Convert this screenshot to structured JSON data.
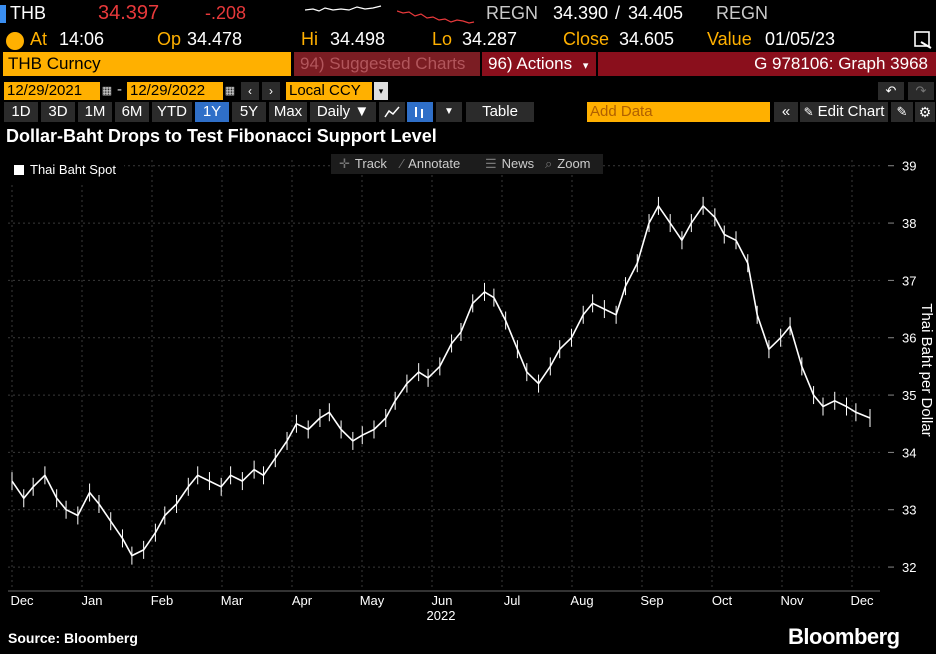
{
  "quote": {
    "ticker": "THB",
    "last": "34.397",
    "change": "-.208",
    "source_left": "REGN",
    "bid": "34.390",
    "sep": "/",
    "ask": "34.405",
    "source_right": "REGN"
  },
  "info": {
    "at_label": "At",
    "at_value": "14:06",
    "op_label": "Op",
    "op_value": "34.478",
    "hi_label": "Hi",
    "hi_value": "34.498",
    "lo_label": "Lo",
    "lo_value": "34.287",
    "close_label": "Close",
    "close_value": "34.605",
    "value_label": "Value",
    "value_value": "01/05/23"
  },
  "title_bar": {
    "security": "THB Curncy",
    "suggested": "94) Suggested Charts",
    "actions": "96) Actions",
    "actions_caret": "▾",
    "graph_id": "G 978106: Graph 3968"
  },
  "dates": {
    "start": "12/29/2021",
    "dash": "-",
    "end": "12/29/2022",
    "prev": "‹",
    "next": "›",
    "currency": "Local CCY",
    "currency_caret": "▾"
  },
  "ranges": [
    "1D",
    "3D",
    "1M",
    "6M",
    "YTD",
    "1Y",
    "5Y",
    "Max"
  ],
  "active_range": "1Y",
  "toolbar": {
    "periodicity": "Daily ▼",
    "table": "Table",
    "add_data_placeholder": "Add Data",
    "collapse": "«",
    "edit_chart": "Edit Chart"
  },
  "chart_tools": {
    "track": "Track",
    "annotate": "Annotate",
    "news": "News",
    "zoom": "Zoom"
  },
  "icons": {
    "undo": "undo-icon",
    "redo": "redo-icon",
    "settings": "gear-icon",
    "edit": "pencil-icon",
    "export": "export-icon"
  },
  "colors": {
    "accent_orange": "#ffb000",
    "header_red": "#8a0f1c",
    "change_red": "#e8393b",
    "active_blue": "#2f6fc8",
    "price_line": "#ffffff"
  },
  "chart_data": {
    "type": "line",
    "title": "Dollar-Baht Drops to Test Fibonacci Support Level",
    "ylabel": "Thai Baht per Dollar",
    "xlabel": "2022",
    "x_ticks": [
      "Dec",
      "Jan",
      "Feb",
      "Mar",
      "Apr",
      "May",
      "Jun",
      "Jul",
      "Aug",
      "Sep",
      "Oct",
      "Nov",
      "Dec"
    ],
    "y_ticks": [
      32,
      33,
      34,
      35,
      36,
      37,
      38,
      39
    ],
    "ylim": [
      31.6,
      39.1
    ],
    "grid": true,
    "legend_position": "top-left",
    "series": [
      {
        "name": "Thai Baht Spot",
        "x": [
          "2021-12-29",
          "2022-01-03",
          "2022-01-07",
          "2022-01-12",
          "2022-01-17",
          "2022-01-21",
          "2022-01-26",
          "2022-01-31",
          "2022-02-04",
          "2022-02-09",
          "2022-02-14",
          "2022-02-18",
          "2022-02-23",
          "2022-02-28",
          "2022-03-04",
          "2022-03-09",
          "2022-03-14",
          "2022-03-18",
          "2022-03-23",
          "2022-03-28",
          "2022-04-01",
          "2022-04-06",
          "2022-04-11",
          "2022-04-15",
          "2022-04-20",
          "2022-04-25",
          "2022-04-29",
          "2022-05-04",
          "2022-05-09",
          "2022-05-13",
          "2022-05-18",
          "2022-05-23",
          "2022-05-27",
          "2022-06-01",
          "2022-06-06",
          "2022-06-10",
          "2022-06-15",
          "2022-06-20",
          "2022-06-24",
          "2022-06-29",
          "2022-07-04",
          "2022-07-08",
          "2022-07-13",
          "2022-07-18",
          "2022-07-22",
          "2022-07-27",
          "2022-08-01",
          "2022-08-05",
          "2022-08-10",
          "2022-08-15",
          "2022-08-19",
          "2022-08-24",
          "2022-08-29",
          "2022-09-02",
          "2022-09-07",
          "2022-09-12",
          "2022-09-16",
          "2022-09-21",
          "2022-09-26",
          "2022-09-30",
          "2022-10-05",
          "2022-10-10",
          "2022-10-14",
          "2022-10-19",
          "2022-10-24",
          "2022-10-28",
          "2022-11-02",
          "2022-11-07",
          "2022-11-11",
          "2022-11-16",
          "2022-11-21",
          "2022-11-25",
          "2022-11-30",
          "2022-12-05",
          "2022-12-09",
          "2022-12-14",
          "2022-12-19",
          "2022-12-23",
          "2022-12-29"
        ],
        "values": [
          33.5,
          33.2,
          33.4,
          33.6,
          33.2,
          33.0,
          32.9,
          33.3,
          33.1,
          32.8,
          32.5,
          32.2,
          32.3,
          32.6,
          32.9,
          33.1,
          33.4,
          33.6,
          33.5,
          33.4,
          33.6,
          33.5,
          33.7,
          33.6,
          33.9,
          34.2,
          34.5,
          34.4,
          34.6,
          34.7,
          34.4,
          34.2,
          34.3,
          34.4,
          34.6,
          34.9,
          35.2,
          35.4,
          35.3,
          35.5,
          35.9,
          36.1,
          36.6,
          36.8,
          36.7,
          36.3,
          35.8,
          35.4,
          35.2,
          35.5,
          35.8,
          36.0,
          36.4,
          36.6,
          36.5,
          36.4,
          36.9,
          37.3,
          38.0,
          38.3,
          38.0,
          37.7,
          38.0,
          38.3,
          38.1,
          37.8,
          37.7,
          37.3,
          36.4,
          35.8,
          36.0,
          36.2,
          35.5,
          35.0,
          34.8,
          34.9,
          34.8,
          34.7,
          34.6
        ]
      }
    ]
  },
  "footer": {
    "source": "Source: Bloomberg",
    "brand": "Bloomberg"
  }
}
